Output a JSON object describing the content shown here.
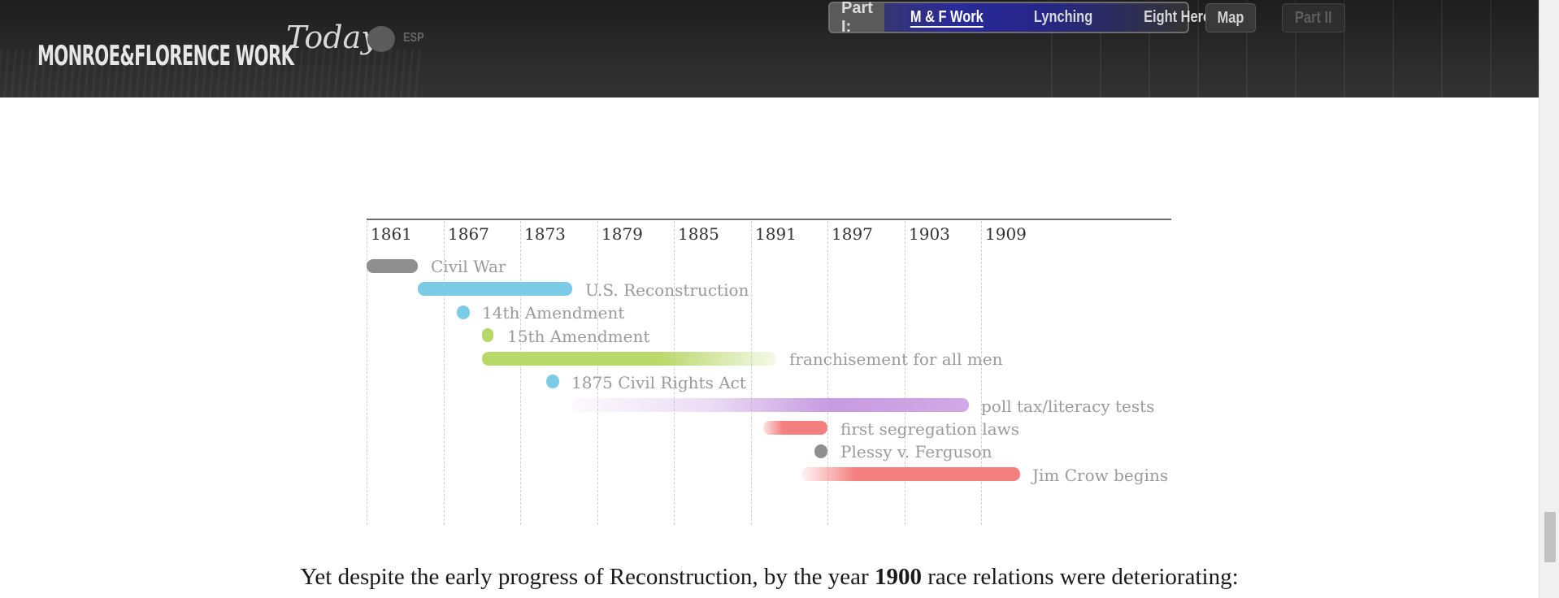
{
  "header": {
    "logo": {
      "main": "MONROE&FLORENCE WORK",
      "script": "Today"
    },
    "language_toggle": "ESP",
    "nav": {
      "part1_label": "Part I:",
      "items": [
        "M & F Work",
        "Lynching",
        "Eight Heroes"
      ],
      "active_index": 0,
      "map": "Map",
      "part2": "Part II"
    }
  },
  "timeline": {
    "years": [
      "1861",
      "1867",
      "1873",
      "1879",
      "1885",
      "1891",
      "1897",
      "1903",
      "1909"
    ],
    "events": [
      {
        "label": "Civil War",
        "color": "#8f8f8f"
      },
      {
        "label": "U.S. Reconstruction",
        "color": "#7ccbe6"
      },
      {
        "label": "14th Amendment",
        "color": "#7ccbe6"
      },
      {
        "label": "15th Amendment",
        "color": "#b9d86a"
      },
      {
        "label": "franchisement for all men",
        "color": "#b9d86a"
      },
      {
        "label": "1875 Civil Rights Act",
        "color": "#7ccbe6"
      },
      {
        "label": "poll tax/literacy tests",
        "color": "#c79be0"
      },
      {
        "label": "first segregation laws",
        "color": "#f47f7f"
      },
      {
        "label": "Plessy v. Ferguson",
        "color": "#8f8f8f"
      },
      {
        "label": "Jim Crow begins",
        "color": "#f47f7f"
      }
    ]
  },
  "body": {
    "pre": "Yet despite the early progress of Reconstruction, by the year ",
    "year": "1900",
    "post": " race relations were deteriorating:"
  }
}
